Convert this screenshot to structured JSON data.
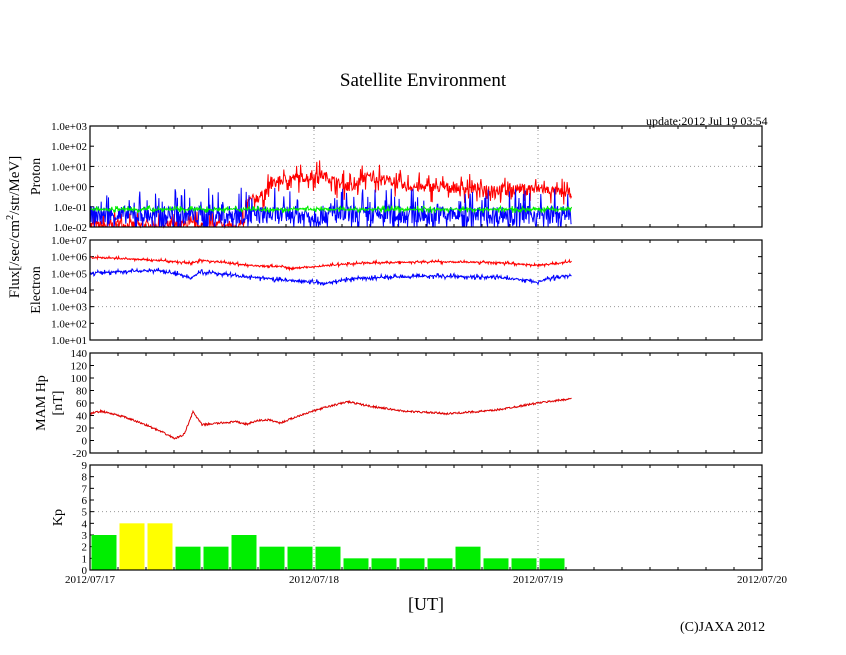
{
  "title": "Satellite Environment",
  "update": "update:2012 Jul 19 03:54",
  "copyright": "(C)JAXA 2012",
  "flux_ylabel": "Flux[/sec/cm2/str/MeV]",
  "chart_data": [
    {
      "type": "line",
      "name": "proton",
      "ylabel": "Proton",
      "yscale": "log",
      "ylim": [
        0.01,
        1000
      ],
      "yticks": [
        "1.0e-02",
        "1.0e-01",
        "1.0e+00",
        "1.0e+01",
        "1.0e+02",
        "1.0e+03"
      ],
      "grid_y": [
        10
      ],
      "series": [
        {
          "name": "proton-red",
          "color": "#ff0000",
          "noise": 0.5,
          "x": [
            0,
            0.69,
            0.7,
            0.78,
            0.8,
            0.88,
            0.98,
            1.03,
            1.1,
            1.18,
            1.23,
            1.3,
            1.4,
            1.55,
            1.7,
            2.0,
            2.1,
            2.15
          ],
          "y": [
            0.012,
            0.012,
            0.15,
            0.4,
            1,
            2.5,
            3,
            4,
            1.5,
            0.8,
            3,
            2.5,
            1,
            0.9,
            0.8,
            0.8,
            0.5,
            0.5
          ]
        },
        {
          "name": "proton-blue",
          "color": "#0000ff",
          "noise": 0.9,
          "x": [
            0,
            2.15
          ],
          "y": [
            0.04,
            0.04
          ]
        },
        {
          "name": "proton-green",
          "color": "#00ee00",
          "noise": 0.12,
          "x": [
            0,
            2.15
          ],
          "y": [
            0.075,
            0.075
          ]
        }
      ]
    },
    {
      "type": "line",
      "name": "electron",
      "ylabel": "Electron",
      "yscale": "log",
      "ylim": [
        10,
        10000000
      ],
      "yticks": [
        "1.0e+01",
        "1.0e+02",
        "1.0e+03",
        "1.0e+04",
        "1.0e+05",
        "1.0e+06",
        "1.0e+07"
      ],
      "grid_y": [
        1000
      ],
      "series": [
        {
          "name": "electron-red",
          "color": "#ff0000",
          "noise": 0.08,
          "x": [
            0,
            0.1,
            0.3,
            0.45,
            0.5,
            0.7,
            0.85,
            0.9,
            1.0,
            1.2,
            1.5,
            1.8,
            2.0,
            2.15
          ],
          "y": [
            900000,
            800000,
            600000,
            400000,
            600000,
            300000,
            250000,
            200000,
            250000,
            400000,
            500000,
            450000,
            300000,
            500000
          ]
        },
        {
          "name": "electron-blue",
          "color": "#0000ff",
          "noise": 0.12,
          "x": [
            0,
            0.1,
            0.3,
            0.45,
            0.5,
            0.7,
            0.85,
            1.0,
            1.05,
            1.2,
            1.5,
            1.8,
            2.0,
            2.15
          ],
          "y": [
            100000,
            120000,
            150000,
            50000,
            120000,
            60000,
            40000,
            30000,
            25000,
            50000,
            70000,
            60000,
            30000,
            80000
          ]
        }
      ]
    },
    {
      "type": "line",
      "name": "mam-hp",
      "ylabel": "MAM Hp [nT]",
      "ylim": [
        -20,
        140
      ],
      "yticks": [
        "-20",
        "0",
        "20",
        "40",
        "60",
        "80",
        "100",
        "120",
        "140"
      ],
      "grid_y": [],
      "series": [
        {
          "name": "mam-hp-red",
          "color": "#dd0000",
          "noise": 3,
          "x": [
            0,
            0.05,
            0.15,
            0.25,
            0.33,
            0.38,
            0.42,
            0.46,
            0.5,
            0.55,
            0.65,
            0.7,
            0.75,
            0.8,
            0.85,
            0.95,
            1.05,
            1.15,
            1.25,
            1.4,
            1.6,
            1.8,
            2.0,
            2.15
          ],
          "y": [
            43,
            47,
            38,
            25,
            12,
            3,
            10,
            46,
            25,
            27,
            30,
            26,
            32,
            33,
            28,
            42,
            53,
            62,
            55,
            47,
            43,
            48,
            60,
            67
          ]
        }
      ]
    },
    {
      "type": "bar",
      "name": "kp",
      "ylabel": "Kp",
      "ylim": [
        0,
        9
      ],
      "yticks": [
        "0",
        "1",
        "2",
        "3",
        "4",
        "5",
        "6",
        "7",
        "8",
        "9"
      ],
      "grid_y": [
        5
      ],
      "bar_width_days": 0.125,
      "threshold_yellow": 4,
      "colors": {
        "low": "#00ee00",
        "high": "#ffff00"
      },
      "values": [
        3,
        4,
        4,
        2,
        2,
        3,
        2,
        2,
        2,
        1,
        1,
        1,
        1,
        2,
        1,
        1,
        1
      ]
    }
  ],
  "x_axis": {
    "label": "[UT]",
    "range_days": [
      0,
      3
    ],
    "ticks": [
      "2012/07/17",
      "2012/07/18",
      "2012/07/19",
      "2012/07/20"
    ]
  }
}
